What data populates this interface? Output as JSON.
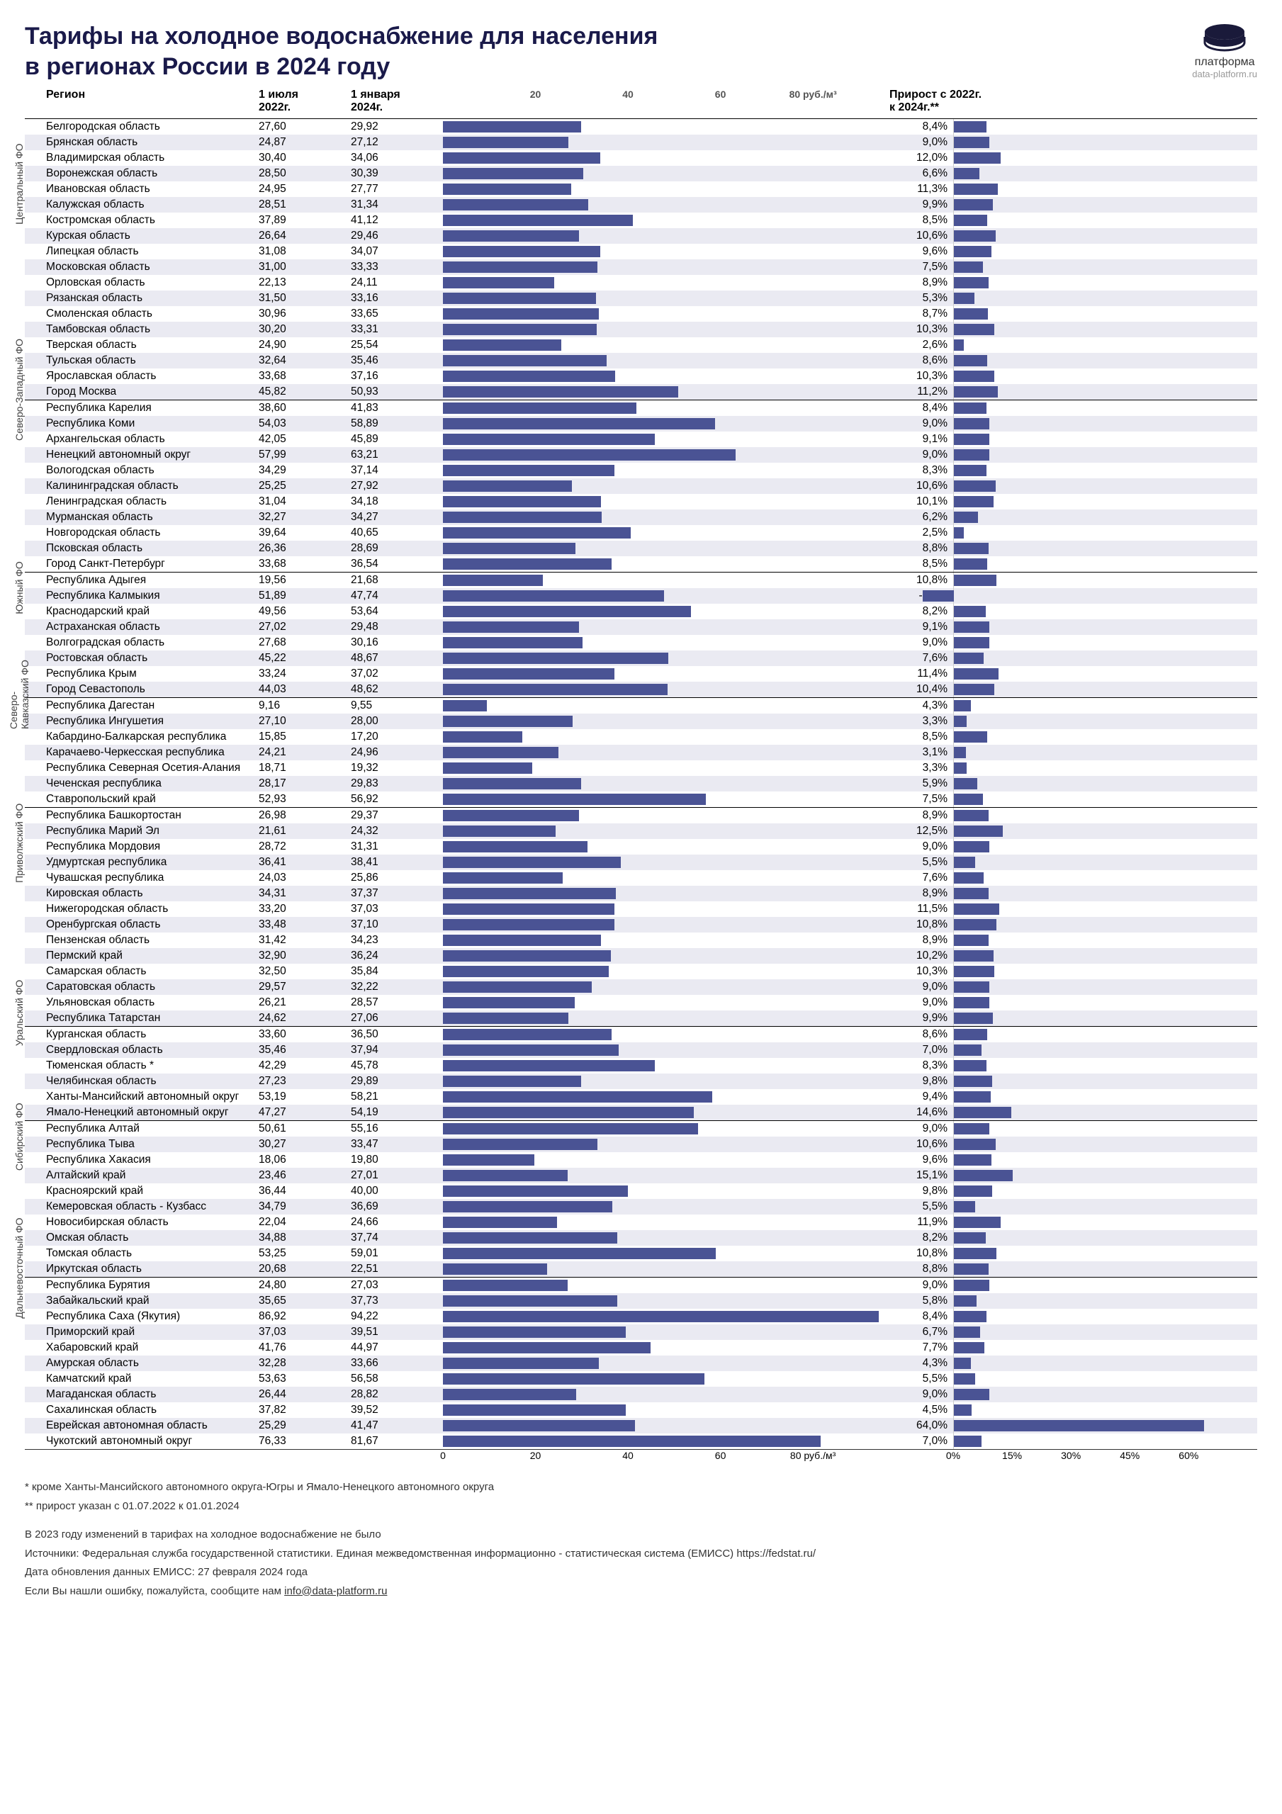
{
  "title_line1": "Тарифы на холодное водоснабжение для населения",
  "title_line2": "в регионах России в 2024 году",
  "logo": {
    "text": "платформа",
    "url": "data-platform.ru"
  },
  "headers": {
    "region": "Регион",
    "v1": "1 июля\n2022г.",
    "v2": "1 января\n2024г.",
    "growth": "Прирост с 2022г.\nк 2024г.**"
  },
  "bar1": {
    "max": 95,
    "unit": "руб./м³",
    "ticks": [
      0,
      20,
      40,
      60,
      80
    ],
    "top_ticks": [
      20,
      40,
      60,
      80
    ]
  },
  "bar2": {
    "max": 65,
    "ticks": [
      0,
      15,
      30,
      45,
      60
    ],
    "unit": "%"
  },
  "bar_color": "#4a5394",
  "groups": [
    {
      "label": "Центральный ФО",
      "rows": [
        {
          "r": "Белгородская область",
          "v1": "27,60",
          "v2": "29,92",
          "b": 29.92,
          "g": "8,4%",
          "gb": 8.4
        },
        {
          "r": "Брянская область",
          "v1": "24,87",
          "v2": "27,12",
          "b": 27.12,
          "g": "9,0%",
          "gb": 9.0
        },
        {
          "r": "Владимирская область",
          "v1": "30,40",
          "v2": "34,06",
          "b": 34.06,
          "g": "12,0%",
          "gb": 12.0
        },
        {
          "r": "Воронежская область",
          "v1": "28,50",
          "v2": "30,39",
          "b": 30.39,
          "g": "6,6%",
          "gb": 6.6
        },
        {
          "r": "Ивановская область",
          "v1": "24,95",
          "v2": "27,77",
          "b": 27.77,
          "g": "11,3%",
          "gb": 11.3
        },
        {
          "r": "Калужская область",
          "v1": "28,51",
          "v2": "31,34",
          "b": 31.34,
          "g": "9,9%",
          "gb": 9.9
        },
        {
          "r": "Костромская область",
          "v1": "37,89",
          "v2": "41,12",
          "b": 41.12,
          "g": "8,5%",
          "gb": 8.5
        },
        {
          "r": "Курская область",
          "v1": "26,64",
          "v2": "29,46",
          "b": 29.46,
          "g": "10,6%",
          "gb": 10.6
        },
        {
          "r": "Липецкая область",
          "v1": "31,08",
          "v2": "34,07",
          "b": 34.07,
          "g": "9,6%",
          "gb": 9.6
        },
        {
          "r": "Московская область",
          "v1": "31,00",
          "v2": "33,33",
          "b": 33.33,
          "g": "7,5%",
          "gb": 7.5
        },
        {
          "r": "Орловская область",
          "v1": "22,13",
          "v2": "24,11",
          "b": 24.11,
          "g": "8,9%",
          "gb": 8.9
        },
        {
          "r": "Рязанская область",
          "v1": "31,50",
          "v2": "33,16",
          "b": 33.16,
          "g": "5,3%",
          "gb": 5.3
        },
        {
          "r": "Смоленская область",
          "v1": "30,96",
          "v2": "33,65",
          "b": 33.65,
          "g": "8,7%",
          "gb": 8.7
        },
        {
          "r": "Тамбовская область",
          "v1": "30,20",
          "v2": "33,31",
          "b": 33.31,
          "g": "10,3%",
          "gb": 10.3
        },
        {
          "r": "Тверская область",
          "v1": "24,90",
          "v2": "25,54",
          "b": 25.54,
          "g": "2,6%",
          "gb": 2.6
        },
        {
          "r": "Тульская область",
          "v1": "32,64",
          "v2": "35,46",
          "b": 35.46,
          "g": "8,6%",
          "gb": 8.6
        },
        {
          "r": "Ярославская область",
          "v1": "33,68",
          "v2": "37,16",
          "b": 37.16,
          "g": "10,3%",
          "gb": 10.3
        },
        {
          "r": "Город Москва",
          "v1": "45,82",
          "v2": "50,93",
          "b": 50.93,
          "g": "11,2%",
          "gb": 11.2
        }
      ]
    },
    {
      "label": "Северо-Западный ФО",
      "rows": [
        {
          "r": "Республика Карелия",
          "v1": "38,60",
          "v2": "41,83",
          "b": 41.83,
          "g": "8,4%",
          "gb": 8.4
        },
        {
          "r": "Республика Коми",
          "v1": "54,03",
          "v2": "58,89",
          "b": 58.89,
          "g": "9,0%",
          "gb": 9.0
        },
        {
          "r": "Архангельская область",
          "v1": "42,05",
          "v2": "45,89",
          "b": 45.89,
          "g": "9,1%",
          "gb": 9.1
        },
        {
          "r": "Ненецкий автономный округ",
          "v1": "57,99",
          "v2": "63,21",
          "b": 63.21,
          "g": "9,0%",
          "gb": 9.0
        },
        {
          "r": "Вологодская область",
          "v1": "34,29",
          "v2": "37,14",
          "b": 37.14,
          "g": "8,3%",
          "gb": 8.3
        },
        {
          "r": "Калининградская область",
          "v1": "25,25",
          "v2": "27,92",
          "b": 27.92,
          "g": "10,6%",
          "gb": 10.6
        },
        {
          "r": "Ленинградская область",
          "v1": "31,04",
          "v2": "34,18",
          "b": 34.18,
          "g": "10,1%",
          "gb": 10.1
        },
        {
          "r": "Мурманская область",
          "v1": "32,27",
          "v2": "34,27",
          "b": 34.27,
          "g": "6,2%",
          "gb": 6.2
        },
        {
          "r": "Новгородская область",
          "v1": "39,64",
          "v2": "40,65",
          "b": 40.65,
          "g": "2,5%",
          "gb": 2.5
        },
        {
          "r": "Псковская область",
          "v1": "26,36",
          "v2": "28,69",
          "b": 28.69,
          "g": "8,8%",
          "gb": 8.8
        },
        {
          "r": "Город Санкт-Петербург",
          "v1": "33,68",
          "v2": "36,54",
          "b": 36.54,
          "g": "8,5%",
          "gb": 8.5
        }
      ]
    },
    {
      "label": "Южный ФО",
      "rows": [
        {
          "r": "Республика Адыгея",
          "v1": "19,56",
          "v2": "21,68",
          "b": 21.68,
          "g": "10,8%",
          "gb": 10.8
        },
        {
          "r": "Республика Калмыкия",
          "v1": "51,89",
          "v2": "47,74",
          "b": 47.74,
          "g": "-8,0%",
          "gb": -8.0
        },
        {
          "r": "Краснодарский край",
          "v1": "49,56",
          "v2": "53,64",
          "b": 53.64,
          "g": "8,2%",
          "gb": 8.2
        },
        {
          "r": "Астраханская область",
          "v1": "27,02",
          "v2": "29,48",
          "b": 29.48,
          "g": "9,1%",
          "gb": 9.1
        },
        {
          "r": "Волгоградская область",
          "v1": "27,68",
          "v2": "30,16",
          "b": 30.16,
          "g": "9,0%",
          "gb": 9.0
        },
        {
          "r": "Ростовская область",
          "v1": "45,22",
          "v2": "48,67",
          "b": 48.67,
          "g": "7,6%",
          "gb": 7.6
        },
        {
          "r": "Республика Крым",
          "v1": "33,24",
          "v2": "37,02",
          "b": 37.02,
          "g": "11,4%",
          "gb": 11.4
        },
        {
          "r": "Город Севастополь",
          "v1": "44,03",
          "v2": "48,62",
          "b": 48.62,
          "g": "10,4%",
          "gb": 10.4
        }
      ]
    },
    {
      "label": "Северо-\nКавказский ФО",
      "rows": [
        {
          "r": "Республика Дагестан",
          "v1": "9,16",
          "v2": "9,55",
          "b": 9.55,
          "g": "4,3%",
          "gb": 4.3
        },
        {
          "r": "Республика Ингушетия",
          "v1": "27,10",
          "v2": "28,00",
          "b": 28.0,
          "g": "3,3%",
          "gb": 3.3
        },
        {
          "r": "Кабардино-Балкарская республика",
          "v1": "15,85",
          "v2": "17,20",
          "b": 17.2,
          "g": "8,5%",
          "gb": 8.5
        },
        {
          "r": "Карачаево-Черкесская республика",
          "v1": "24,21",
          "v2": "24,96",
          "b": 24.96,
          "g": "3,1%",
          "gb": 3.1
        },
        {
          "r": "Республика Северная Осетия-Алания",
          "v1": "18,71",
          "v2": "19,32",
          "b": 19.32,
          "g": "3,3%",
          "gb": 3.3
        },
        {
          "r": "Чеченская республика",
          "v1": "28,17",
          "v2": "29,83",
          "b": 29.83,
          "g": "5,9%",
          "gb": 5.9
        },
        {
          "r": "Ставропольский край",
          "v1": "52,93",
          "v2": "56,92",
          "b": 56.92,
          "g": "7,5%",
          "gb": 7.5
        }
      ]
    },
    {
      "label": "Приволжский ФО",
      "rows": [
        {
          "r": "Республика Башкортостан",
          "v1": "26,98",
          "v2": "29,37",
          "b": 29.37,
          "g": "8,9%",
          "gb": 8.9
        },
        {
          "r": "Республика Марий Эл",
          "v1": "21,61",
          "v2": "24,32",
          "b": 24.32,
          "g": "12,5%",
          "gb": 12.5
        },
        {
          "r": "Республика Мордовия",
          "v1": "28,72",
          "v2": "31,31",
          "b": 31.31,
          "g": "9,0%",
          "gb": 9.0
        },
        {
          "r": "Удмуртская республика",
          "v1": "36,41",
          "v2": "38,41",
          "b": 38.41,
          "g": "5,5%",
          "gb": 5.5
        },
        {
          "r": "Чувашская республика",
          "v1": "24,03",
          "v2": "25,86",
          "b": 25.86,
          "g": "7,6%",
          "gb": 7.6
        },
        {
          "r": "Кировская область",
          "v1": "34,31",
          "v2": "37,37",
          "b": 37.37,
          "g": "8,9%",
          "gb": 8.9
        },
        {
          "r": "Нижегородская область",
          "v1": "33,20",
          "v2": "37,03",
          "b": 37.03,
          "g": "11,5%",
          "gb": 11.5
        },
        {
          "r": "Оренбургская область",
          "v1": "33,48",
          "v2": "37,10",
          "b": 37.1,
          "g": "10,8%",
          "gb": 10.8
        },
        {
          "r": "Пензенская область",
          "v1": "31,42",
          "v2": "34,23",
          "b": 34.23,
          "g": "8,9%",
          "gb": 8.9
        },
        {
          "r": "Пермский край",
          "v1": "32,90",
          "v2": "36,24",
          "b": 36.24,
          "g": "10,2%",
          "gb": 10.2
        },
        {
          "r": "Самарская область",
          "v1": "32,50",
          "v2": "35,84",
          "b": 35.84,
          "g": "10,3%",
          "gb": 10.3
        },
        {
          "r": "Саратовская область",
          "v1": "29,57",
          "v2": "32,22",
          "b": 32.22,
          "g": "9,0%",
          "gb": 9.0
        },
        {
          "r": "Ульяновская область",
          "v1": "26,21",
          "v2": "28,57",
          "b": 28.57,
          "g": "9,0%",
          "gb": 9.0
        },
        {
          "r": "Республика Татарстан",
          "v1": "24,62",
          "v2": "27,06",
          "b": 27.06,
          "g": "9,9%",
          "gb": 9.9
        }
      ]
    },
    {
      "label": "Уральский ФО",
      "rows": [
        {
          "r": "Курганская область",
          "v1": "33,60",
          "v2": "36,50",
          "b": 36.5,
          "g": "8,6%",
          "gb": 8.6
        },
        {
          "r": "Свердловская область",
          "v1": "35,46",
          "v2": "37,94",
          "b": 37.94,
          "g": "7,0%",
          "gb": 7.0
        },
        {
          "r": "Тюменская область *",
          "v1": "42,29",
          "v2": "45,78",
          "b": 45.78,
          "g": "8,3%",
          "gb": 8.3
        },
        {
          "r": "Челябинская область",
          "v1": "27,23",
          "v2": "29,89",
          "b": 29.89,
          "g": "9,8%",
          "gb": 9.8
        },
        {
          "r": "Ханты-Мансийский автономный округ",
          "v1": "53,19",
          "v2": "58,21",
          "b": 58.21,
          "g": "9,4%",
          "gb": 9.4
        },
        {
          "r": "Ямало-Ненецкий автономный округ",
          "v1": "47,27",
          "v2": "54,19",
          "b": 54.19,
          "g": "14,6%",
          "gb": 14.6
        }
      ]
    },
    {
      "label": "Сибирский ФО",
      "rows": [
        {
          "r": "Республика Алтай",
          "v1": "50,61",
          "v2": "55,16",
          "b": 55.16,
          "g": "9,0%",
          "gb": 9.0
        },
        {
          "r": "Республика Тыва",
          "v1": "30,27",
          "v2": "33,47",
          "b": 33.47,
          "g": "10,6%",
          "gb": 10.6
        },
        {
          "r": "Республика Хакасия",
          "v1": "18,06",
          "v2": "19,80",
          "b": 19.8,
          "g": "9,6%",
          "gb": 9.6
        },
        {
          "r": "Алтайский край",
          "v1": "23,46",
          "v2": "27,01",
          "b": 27.01,
          "g": "15,1%",
          "gb": 15.1
        },
        {
          "r": "Красноярский край",
          "v1": "36,44",
          "v2": "40,00",
          "b": 40.0,
          "g": "9,8%",
          "gb": 9.8
        },
        {
          "r": "Кемеровская область - Кузбасс",
          "v1": "34,79",
          "v2": "36,69",
          "b": 36.69,
          "g": "5,5%",
          "gb": 5.5
        },
        {
          "r": "Новосибирская область",
          "v1": "22,04",
          "v2": "24,66",
          "b": 24.66,
          "g": "11,9%",
          "gb": 11.9
        },
        {
          "r": "Омская область",
          "v1": "34,88",
          "v2": "37,74",
          "b": 37.74,
          "g": "8,2%",
          "gb": 8.2
        },
        {
          "r": "Томская область",
          "v1": "53,25",
          "v2": "59,01",
          "b": 59.01,
          "g": "10,8%",
          "gb": 10.8
        },
        {
          "r": "Иркутская область",
          "v1": "20,68",
          "v2": "22,51",
          "b": 22.51,
          "g": "8,8%",
          "gb": 8.8
        }
      ]
    },
    {
      "label": "Дальневосточный ФО",
      "rows": [
        {
          "r": "Республика Бурятия",
          "v1": "24,80",
          "v2": "27,03",
          "b": 27.03,
          "g": "9,0%",
          "gb": 9.0
        },
        {
          "r": "Забайкальский край",
          "v1": "35,65",
          "v2": "37,73",
          "b": 37.73,
          "g": "5,8%",
          "gb": 5.8
        },
        {
          "r": "Республика Саха (Якутия)",
          "v1": "86,92",
          "v2": "94,22",
          "b": 94.22,
          "g": "8,4%",
          "gb": 8.4
        },
        {
          "r": "Приморский край",
          "v1": "37,03",
          "v2": "39,51",
          "b": 39.51,
          "g": "6,7%",
          "gb": 6.7
        },
        {
          "r": "Хабаровский край",
          "v1": "41,76",
          "v2": "44,97",
          "b": 44.97,
          "g": "7,7%",
          "gb": 7.7
        },
        {
          "r": "Амурская область",
          "v1": "32,28",
          "v2": "33,66",
          "b": 33.66,
          "g": "4,3%",
          "gb": 4.3
        },
        {
          "r": "Камчатский край",
          "v1": "53,63",
          "v2": "56,58",
          "b": 56.58,
          "g": "5,5%",
          "gb": 5.5
        },
        {
          "r": "Магаданская область",
          "v1": "26,44",
          "v2": "28,82",
          "b": 28.82,
          "g": "9,0%",
          "gb": 9.0
        },
        {
          "r": "Сахалинская область",
          "v1": "37,82",
          "v2": "39,52",
          "b": 39.52,
          "g": "4,5%",
          "gb": 4.5
        },
        {
          "r": "Еврейская автономная область",
          "v1": "25,29",
          "v2": "41,47",
          "b": 41.47,
          "g": "64,0%",
          "gb": 64.0
        },
        {
          "r": "Чукотский автономный округ",
          "v1": "76,33",
          "v2": "81,67",
          "b": 81.67,
          "g": "7,0%",
          "gb": 7.0
        }
      ]
    }
  ],
  "footnotes": {
    "n1": "* кроме Ханты-Мансийского автономного округа-Югры и Ямало-Ненецкого автономного округа",
    "n2": "** прирост указан с 01.07.2022 к 01.01.2024",
    "p1": "В 2023 году изменений в тарифах на холодное водоснабжение не было",
    "p2": "Источники: Федеральная служба государственной статистики. Единая межведомственная информационно - статистическая система (ЕМИСС) https://fedstat.ru/",
    "p3": "Дата обновления данных ЕМИСС: 27 февраля 2024 года",
    "p4_pre": "Если Вы нашли ошибку, пожалуйста, сообщите нам ",
    "p4_link": "info@data-platform.ru"
  }
}
